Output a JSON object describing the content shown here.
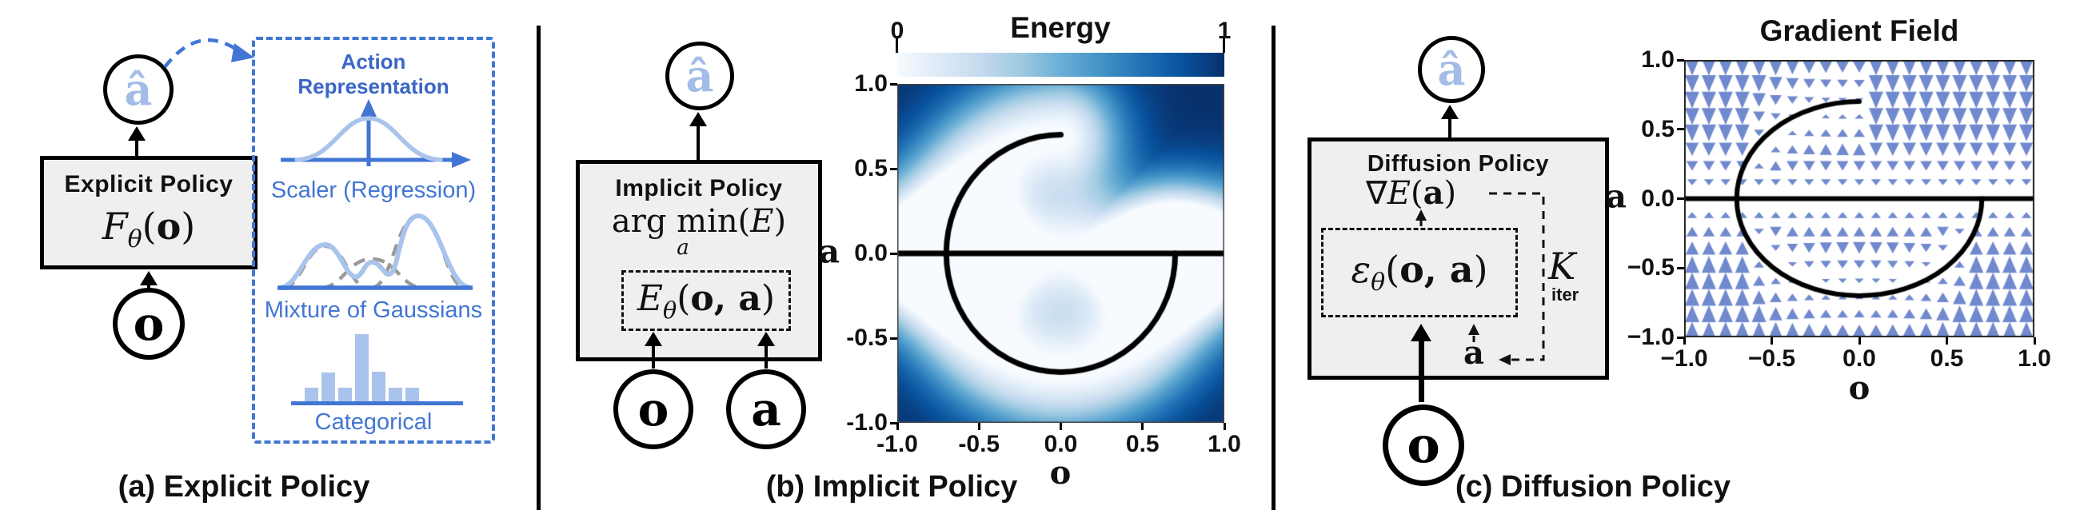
{
  "colors": {
    "diagram_blue": "#4276d4",
    "diagram_blue_dark": "#3a66c8",
    "light_blue": "#a9c4ec",
    "ahat_blue": "#a3bce8",
    "arrow_field_blue": "#7189ce",
    "gray_dash": "#9a9a9a",
    "box_fill": "#efefef"
  },
  "panel_a": {
    "caption": "(a) Explicit Policy",
    "ahat": "â",
    "box_title": "Explicit Policy",
    "formula": {
      "name": "F",
      "sub": "θ",
      "open": "(",
      "arg": "o",
      "close": ")"
    },
    "obs": "o",
    "action_rep_title": "Action Representation",
    "scaler_label": "Scaler (Regression)",
    "mixture_label": "Mixture of Gaussians",
    "categorical_label": "Categorical",
    "categorical_bars": [
      0.2,
      0.43,
      0.2,
      1.0,
      0.44,
      0.2,
      0.2
    ]
  },
  "panel_b": {
    "caption": "(b) Implicit Policy",
    "ahat": "â",
    "box_title": "Implicit Policy",
    "argmin": {
      "prefix": "arg min",
      "open": "(",
      "e": "E",
      "close": ")",
      "sub": "a"
    },
    "energy_formula": {
      "name": "E",
      "sub": "θ",
      "open": "(",
      "args": "o, a",
      "close": ")"
    },
    "obs": "o",
    "act": "a"
  },
  "panel_c": {
    "caption": "(c) Diffusion Policy",
    "ahat": "â",
    "box_title": "Diffusion Policy",
    "grad_formula": {
      "nabla": "∇",
      "e": "E",
      "open": "(",
      "arg": "a",
      "close": ")"
    },
    "eps_formula": {
      "name": "ε",
      "sub": "θ",
      "open": "(",
      "args": "o, a",
      "close": ")"
    },
    "k_label": "K",
    "iter_label": "iter",
    "a_feedback": "a",
    "obs": "o"
  },
  "chart_data": [
    {
      "type": "heatmap",
      "title": "Energy",
      "colorbar_ticks": [
        "0",
        "1"
      ],
      "value_range": [
        0,
        1
      ],
      "xlabel": "o",
      "ylabel": "a",
      "xlim": [
        -1,
        1
      ],
      "ylim": [
        -1,
        1
      ],
      "x_ticks": [
        "-1.0",
        "-0.5",
        "0.0",
        "0.5",
        "1.0"
      ],
      "y_ticks": [
        "1.0",
        "0.5",
        "0.0",
        "-0.5",
        "-1.0"
      ],
      "colormap": "Blues (low = white, high = dark navy)",
      "colormap_stops": [
        "#f7fbff",
        "#deebf7",
        "#c6dbef",
        "#9ecae1",
        "#6baed6",
        "#4292c6",
        "#2171b5",
        "#08519c",
        "#08306b"
      ],
      "manifold": {
        "line_a": 0,
        "circle_radius": 0.7,
        "arc_deg": [
          90,
          360
        ]
      },
      "description": "Energy is low (white) near the demonstrated action manifold (horizontal line a=0 plus a 270-degree circular arc of radius 0.7) and high (dark blue) far from it."
    },
    {
      "type": "quiver",
      "title": "Gradient Field",
      "xlabel": "o",
      "ylabel": "a",
      "xlim": [
        -1,
        1
      ],
      "ylim": [
        -1,
        1
      ],
      "x_ticks": [
        "−1.0",
        "−0.5",
        "0.0",
        "0.5",
        "1.0"
      ],
      "y_ticks": [
        "1.0",
        "0.5",
        "0.0",
        "−0.5",
        "−1.0"
      ],
      "grid": [
        21,
        17
      ],
      "arrow_color": "#7189ce",
      "manifold": {
        "line_a": 0,
        "circle_radius": 0.7,
        "arc_deg": [
          90,
          360
        ]
      },
      "description": "Vertical arrows point along the denoising gradient toward the nearest point of the action manifold for each observation column; arrow size grows with distance from the manifold."
    }
  ]
}
